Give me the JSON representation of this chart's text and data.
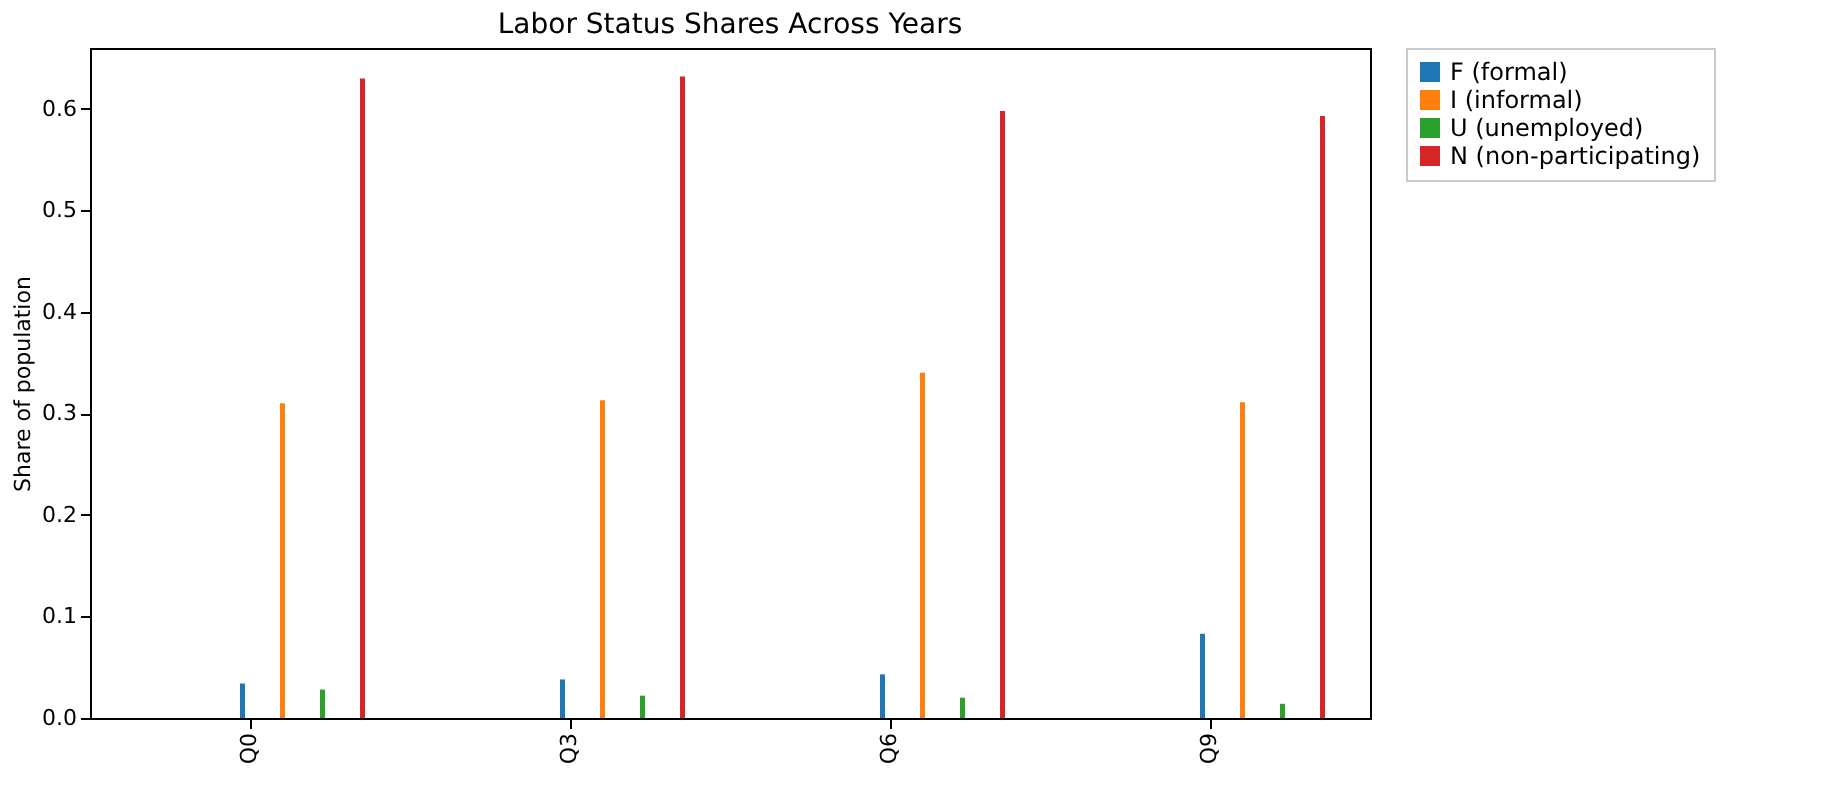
{
  "chart_data": {
    "type": "bar",
    "title": "Labor Status Shares Across Years",
    "ylabel": "Share of population",
    "categories": [
      "Q0",
      "Q3",
      "Q6",
      "Q9"
    ],
    "series": [
      {
        "name": "F (formal)",
        "color": "#1f77b4",
        "values": [
          0.034,
          0.038,
          0.043,
          0.083
        ]
      },
      {
        "name": "I (informal)",
        "color": "#ff7f0e",
        "values": [
          0.31,
          0.313,
          0.34,
          0.311
        ]
      },
      {
        "name": "U (unemployed)",
        "color": "#2ca02c",
        "values": [
          0.028,
          0.022,
          0.02,
          0.014
        ]
      },
      {
        "name": "N (non-participating)",
        "color": "#d62728",
        "values": [
          0.63,
          0.632,
          0.598,
          0.593
        ]
      }
    ],
    "ylim": [
      0,
      0.66
    ],
    "yticks": [
      {
        "value": 0,
        "label": "0.0"
      },
      0.1,
      0.2,
      0.3,
      0.4,
      0.5,
      0.6
    ],
    "grid": false,
    "legend": "right"
  }
}
